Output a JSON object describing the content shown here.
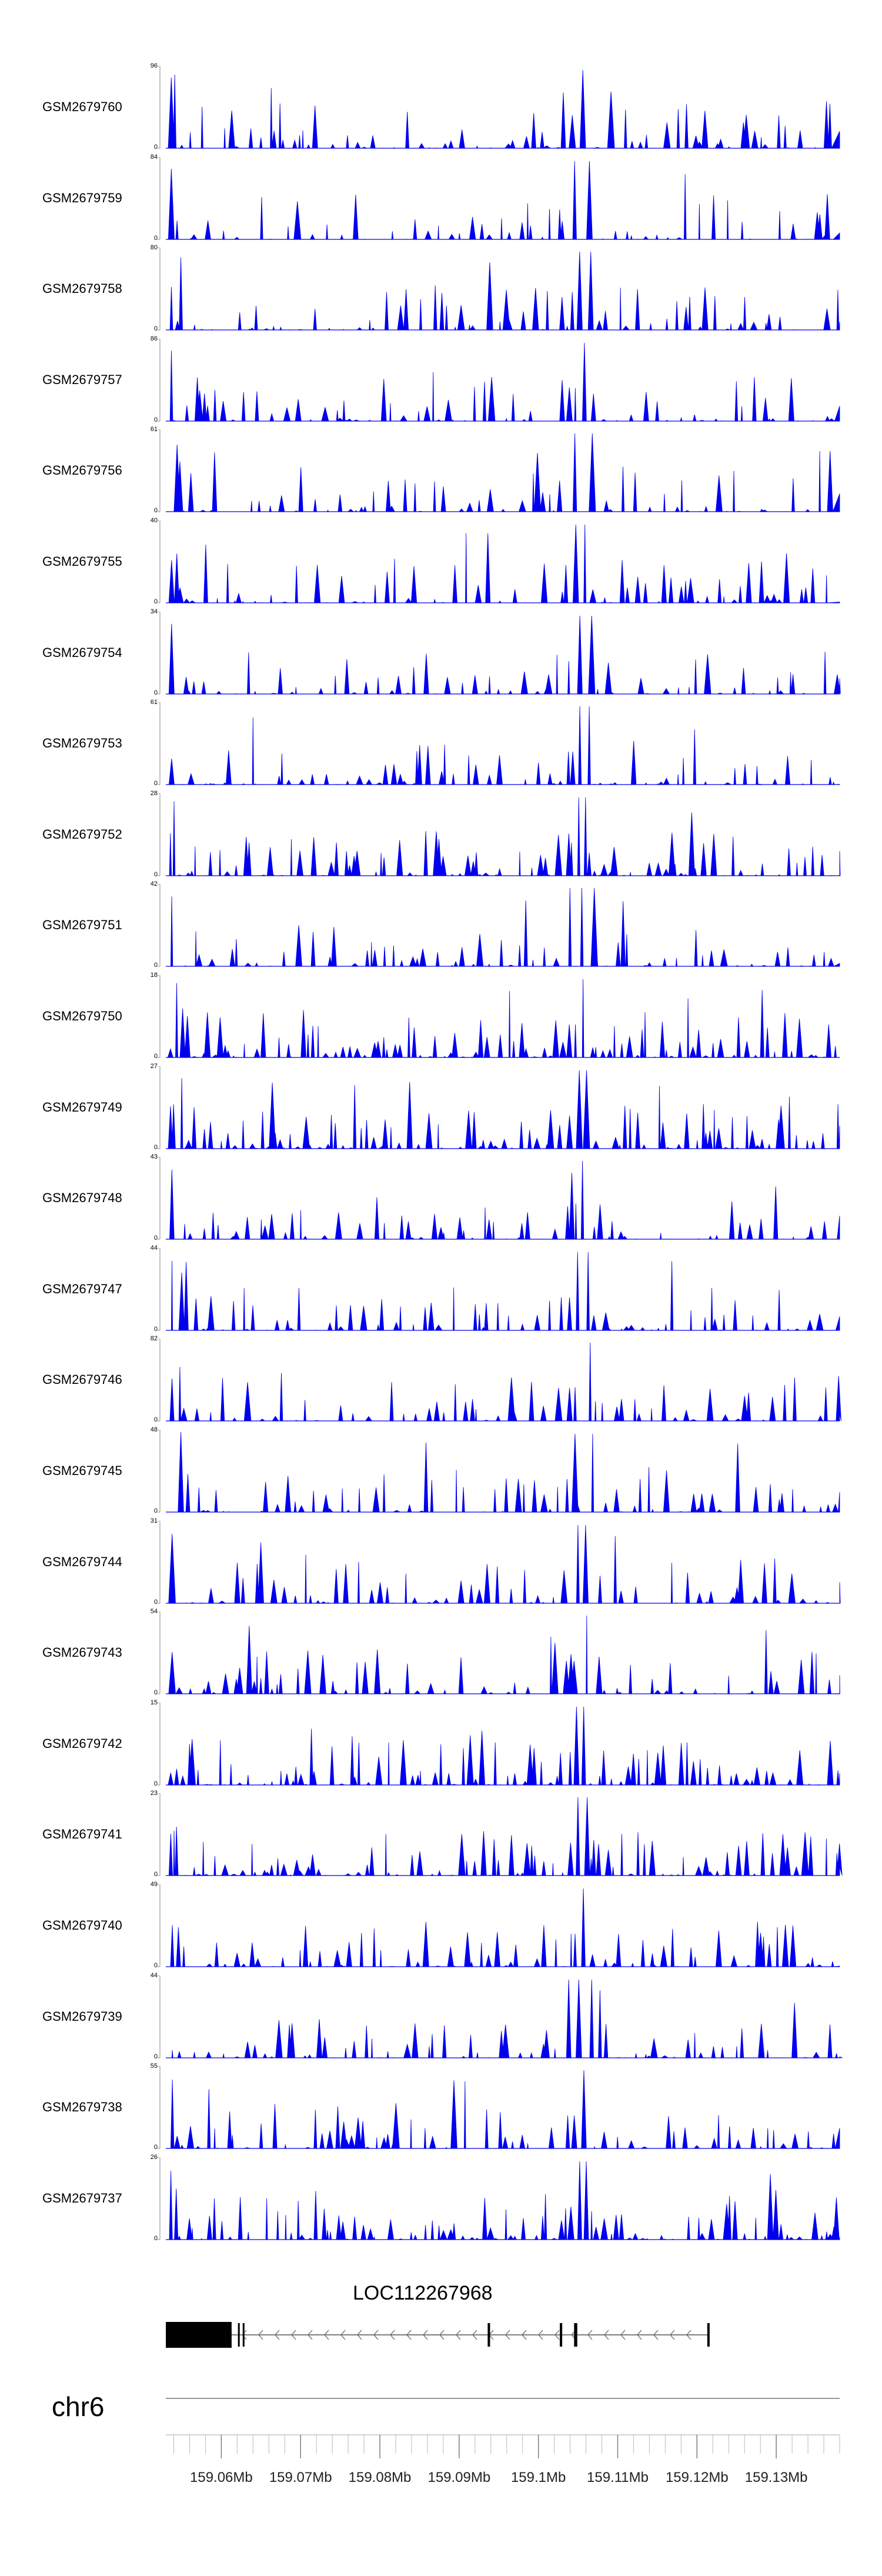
{
  "chart_data": {
    "type": "area",
    "track_color": "#0000ee",
    "samples": [
      {
        "name": "GSM2679760",
        "ymax": 96,
        "seed": 11
      },
      {
        "name": "GSM2679759",
        "ymax": 84,
        "seed": 23
      },
      {
        "name": "GSM2679758",
        "ymax": 80,
        "seed": 37
      },
      {
        "name": "GSM2679757",
        "ymax": 86,
        "seed": 41
      },
      {
        "name": "GSM2679756",
        "ymax": 61,
        "seed": 53
      },
      {
        "name": "GSM2679755",
        "ymax": 40,
        "seed": 67
      },
      {
        "name": "GSM2679754",
        "ymax": 34,
        "seed": 71
      },
      {
        "name": "GSM2679753",
        "ymax": 61,
        "seed": 83
      },
      {
        "name": "GSM2679752",
        "ymax": 28,
        "seed": 97
      },
      {
        "name": "GSM2679751",
        "ymax": 42,
        "seed": 101
      },
      {
        "name": "GSM2679750",
        "ymax": 18,
        "seed": 113
      },
      {
        "name": "GSM2679749",
        "ymax": 27,
        "seed": 127
      },
      {
        "name": "GSM2679748",
        "ymax": 43,
        "seed": 131
      },
      {
        "name": "GSM2679747",
        "ymax": 44,
        "seed": 149
      },
      {
        "name": "GSM2679746",
        "ymax": 82,
        "seed": 151
      },
      {
        "name": "GSM2679745",
        "ymax": 48,
        "seed": 163
      },
      {
        "name": "GSM2679744",
        "ymax": 31,
        "seed": 173
      },
      {
        "name": "GSM2679743",
        "ymax": 54,
        "seed": 181
      },
      {
        "name": "GSM2679742",
        "ymax": 15,
        "seed": 191
      },
      {
        "name": "GSM2679741",
        "ymax": 23,
        "seed": 199
      },
      {
        "name": "GSM2679740",
        "ymax": 49,
        "seed": 211
      },
      {
        "name": "GSM2679739",
        "ymax": 44,
        "seed": 223
      },
      {
        "name": "GSM2679738",
        "ymax": 55,
        "seed": 227
      },
      {
        "name": "GSM2679737",
        "ymax": 26,
        "seed": 239
      }
    ],
    "y_zero_label": "0",
    "x_range_mb": [
      159.053,
      159.138
    ],
    "x_ticks": [
      {
        "value": 159.06,
        "label": "159.06Mb"
      },
      {
        "value": 159.07,
        "label": "159.07Mb"
      },
      {
        "value": 159.08,
        "label": "159.08Mb"
      },
      {
        "value": 159.09,
        "label": "159.09Mb"
      },
      {
        "value": 159.1,
        "label": "159.1Mb"
      },
      {
        "value": 159.11,
        "label": "159.11Mb"
      },
      {
        "value": 159.12,
        "label": "159.12Mb"
      },
      {
        "value": 159.13,
        "label": "159.13Mb"
      }
    ],
    "minor_tick_step_mb": 0.002,
    "common_peaks_mb": [
      159.1055,
      159.1043
    ],
    "chromosome": "chr6",
    "gene": {
      "name": "LOC112267968",
      "strand": "-",
      "start_mb": 159.053,
      "end_mb": 159.1215,
      "exons_mb": [
        [
          159.053,
          159.0613
        ],
        [
          159.0621,
          159.0623
        ],
        [
          159.0627,
          159.0629
        ],
        [
          159.0936,
          159.0939
        ],
        [
          159.1027,
          159.103
        ],
        [
          159.1045,
          159.1049
        ],
        [
          159.1213,
          159.1216
        ]
      ]
    }
  }
}
